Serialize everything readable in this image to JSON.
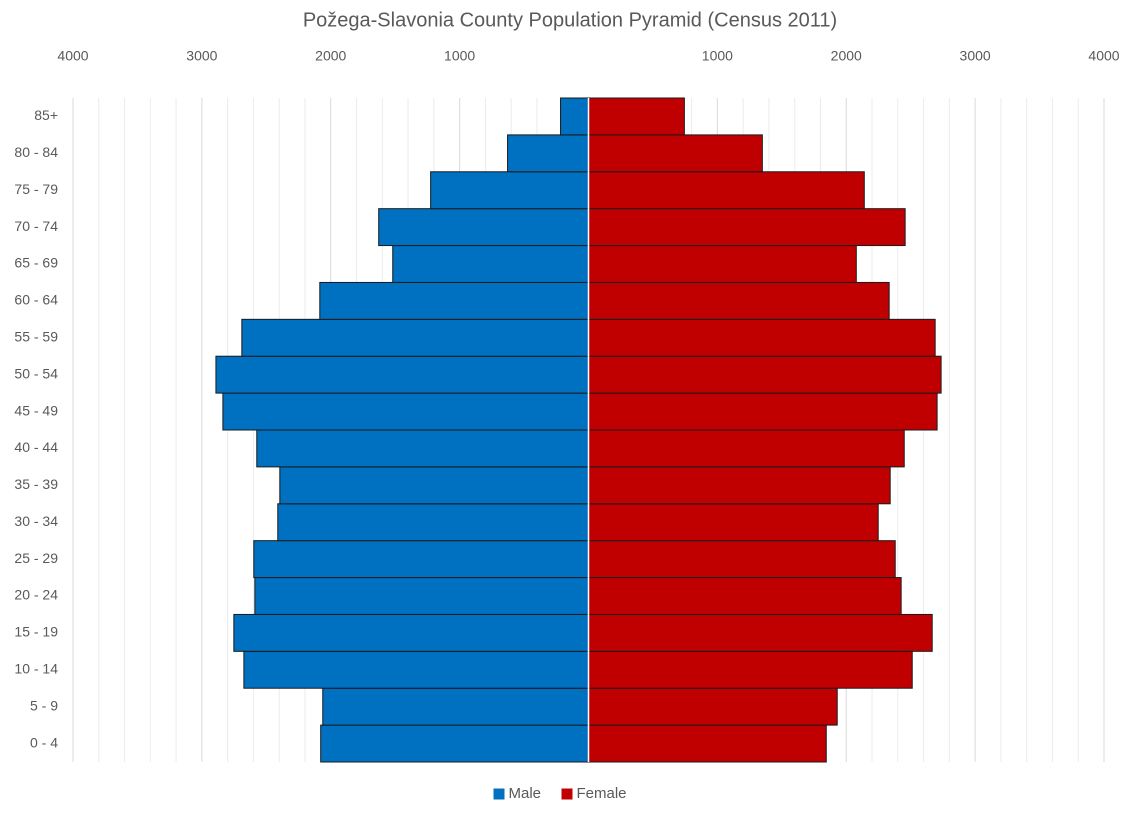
{
  "chart_data": {
    "type": "pyramid",
    "title": "Požega-Slavonia County Population Pyramid (Census 2011)",
    "categories": [
      "0 - 4",
      "5 - 9",
      "10 - 14",
      "15 - 19",
      "20 - 24",
      "25 - 29",
      "30 - 34",
      "35 - 39",
      "40 - 44",
      "45 - 49",
      "50 - 54",
      "55 - 59",
      "60 - 64",
      "65 - 69",
      "70 - 74",
      "75 - 79",
      "80 - 84",
      "85+"
    ],
    "series": [
      {
        "name": "Male",
        "color": "#0070c0",
        "values": [
          -2078,
          -2062,
          -2674,
          -2752,
          -2589,
          -2597,
          -2411,
          -2395,
          -2574,
          -2837,
          -2891,
          -2690,
          -2085,
          -1519,
          -1628,
          -1225,
          -628,
          -217
        ]
      },
      {
        "name": "Female",
        "color": "#c00000",
        "values": [
          1845,
          1930,
          2512,
          2667,
          2426,
          2380,
          2248,
          2341,
          2450,
          2705,
          2736,
          2690,
          2333,
          2078,
          2457,
          2140,
          1349,
          744
        ]
      }
    ],
    "xlim": [
      -4000,
      4000
    ],
    "xticks": [
      {
        "value": -4000,
        "label": "4000"
      },
      {
        "value": -3000,
        "label": "3000"
      },
      {
        "value": -2000,
        "label": "2000"
      },
      {
        "value": -1000,
        "label": "1000"
      },
      1000,
      2000,
      3000,
      4000
    ],
    "grid": true,
    "legend": "bottom"
  }
}
